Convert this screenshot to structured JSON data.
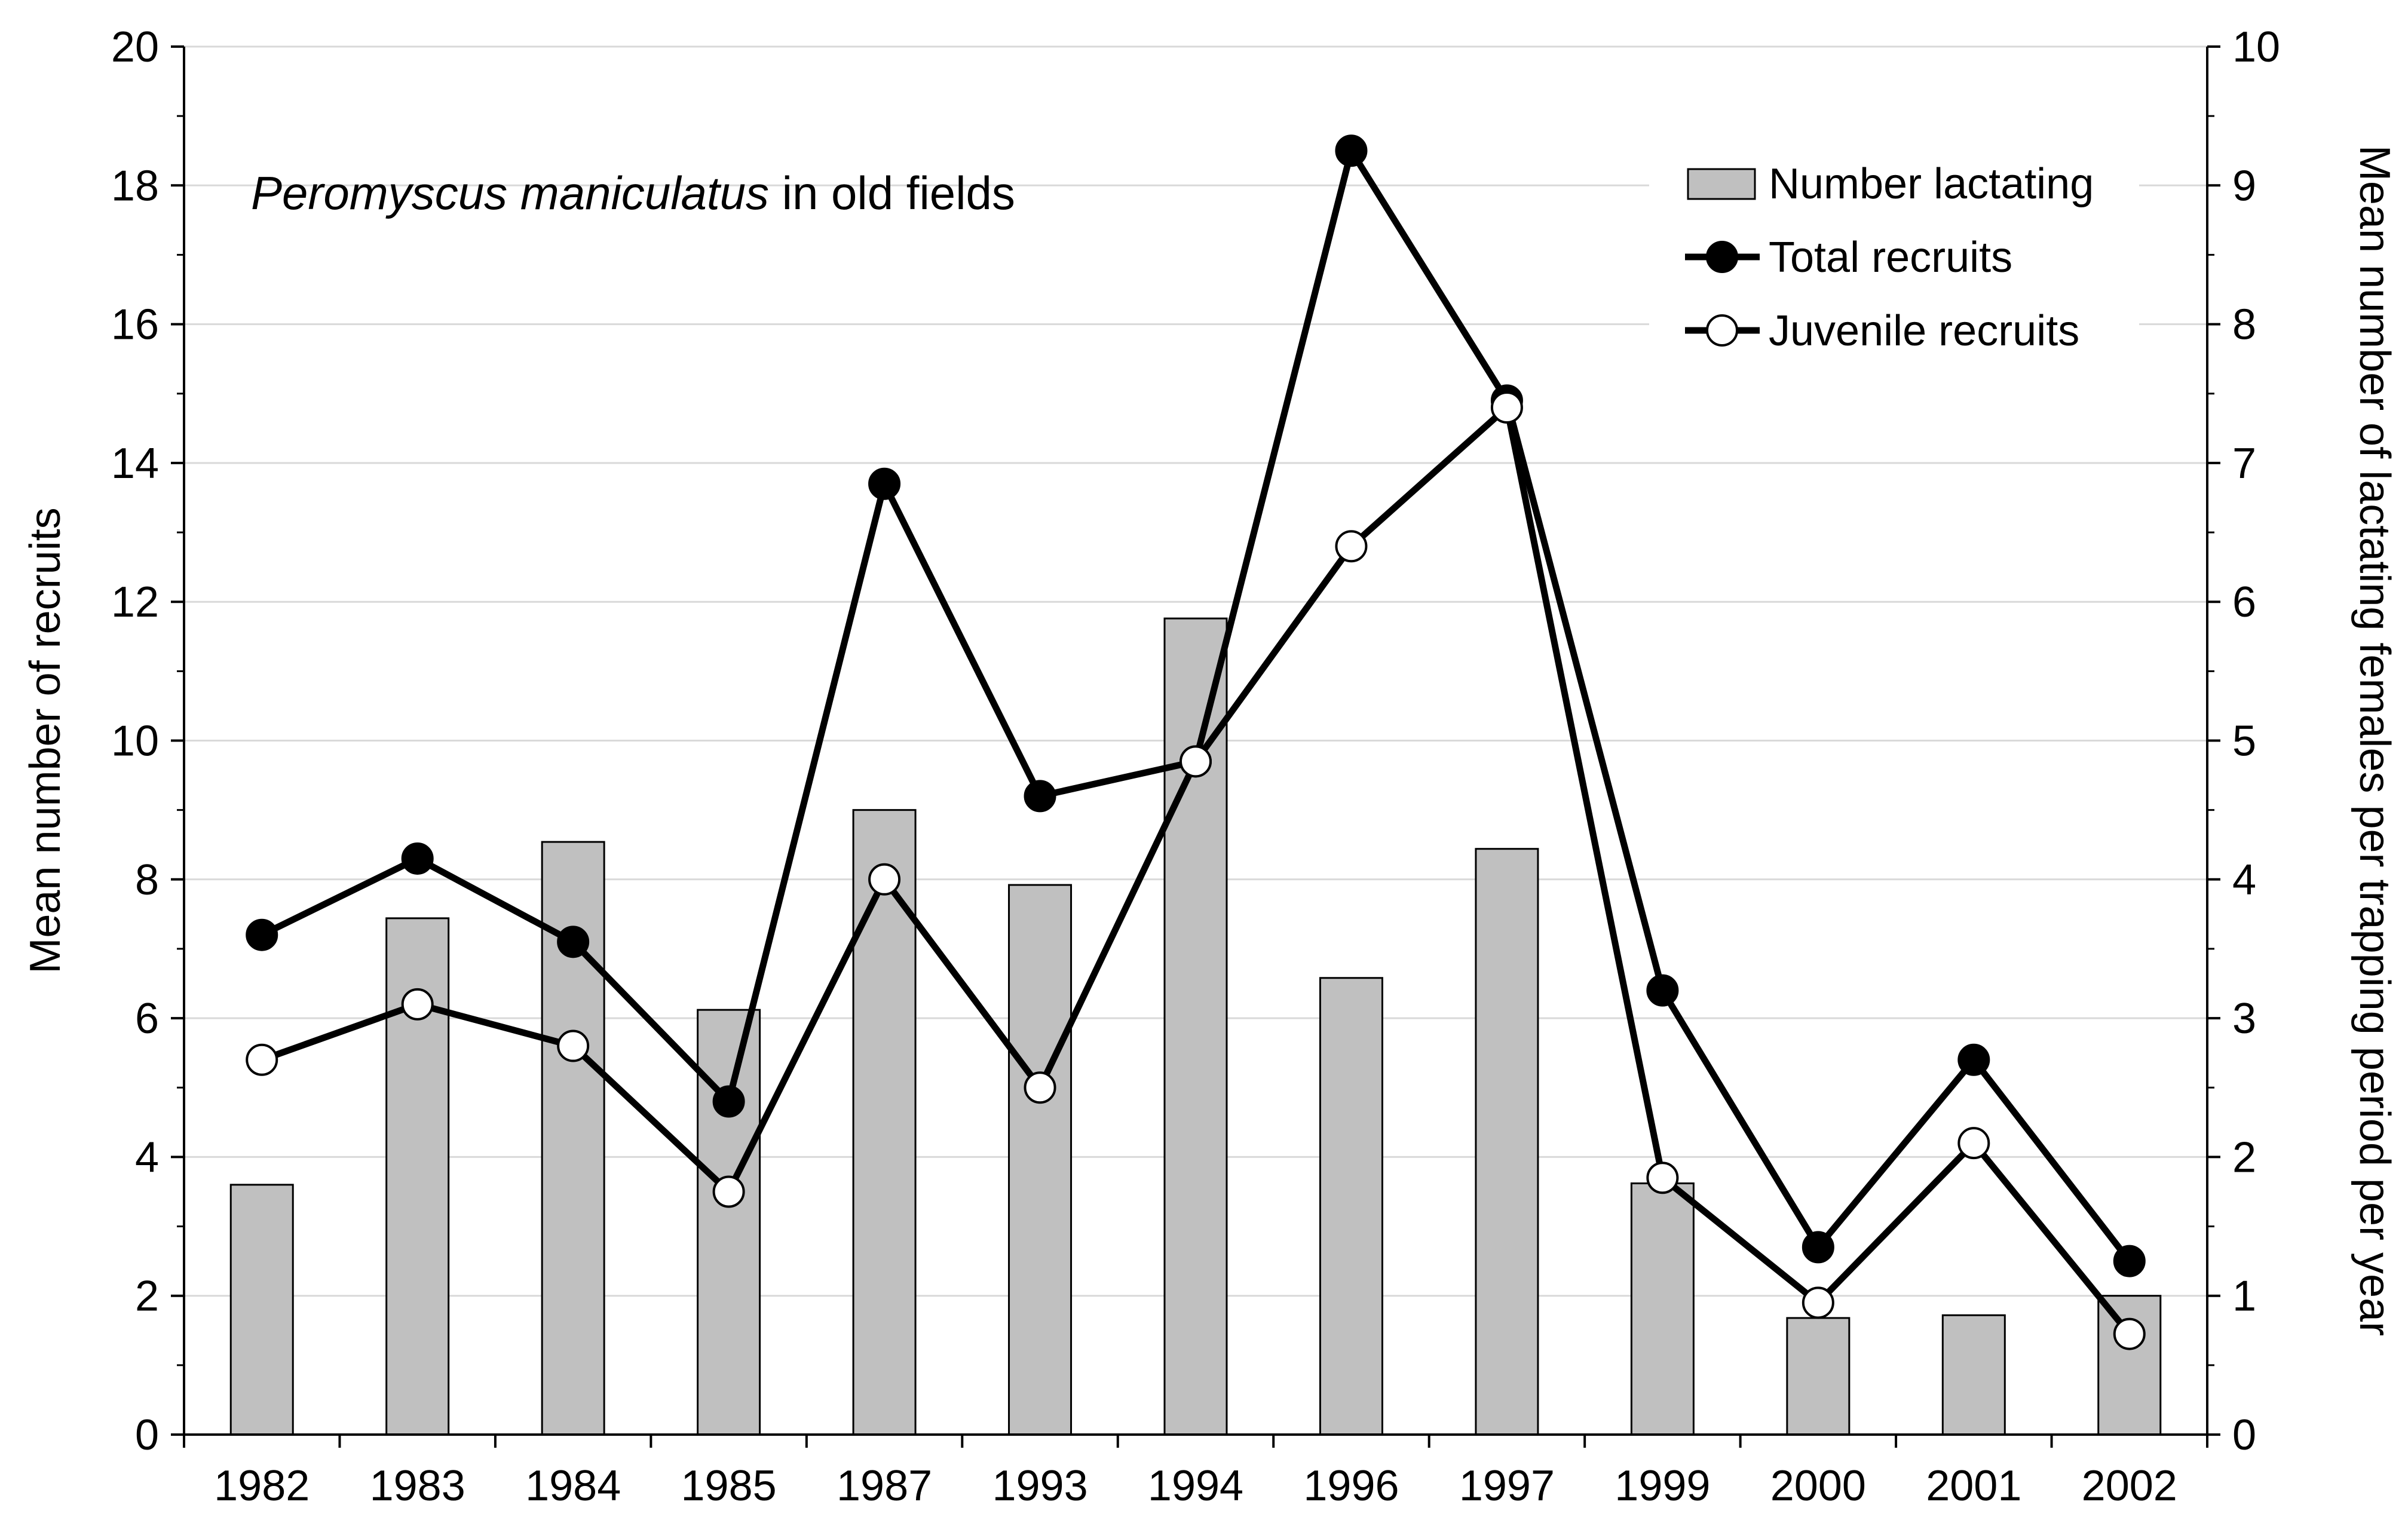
{
  "chart_data": {
    "type": "bar+line",
    "title_italic": "Peromyscus maniculatus",
    "title_rest": " in old fields",
    "categories": [
      "1982",
      "1983",
      "1984",
      "1985",
      "1987",
      "1993",
      "1994",
      "1996",
      "1997",
      "1999",
      "2000",
      "2001",
      "2002"
    ],
    "left_axis": {
      "label": "Mean number of recruits",
      "range": [
        0,
        20
      ],
      "ticks": [
        "0",
        "2",
        "4",
        "6",
        "8",
        "10",
        "12",
        "14",
        "16",
        "18",
        "20"
      ]
    },
    "right_axis": {
      "label": "Mean number of lactating females per trapping period per year",
      "range": [
        0,
        10
      ],
      "ticks": [
        "0",
        "1",
        "2",
        "3",
        "4",
        "5",
        "6",
        "7",
        "8",
        "9",
        "10"
      ]
    },
    "series": [
      {
        "name": "Number lactating",
        "kind": "bar",
        "axis": "right",
        "color": "#c0c0c0",
        "values": [
          1.8,
          3.72,
          4.27,
          3.06,
          4.5,
          3.96,
          5.88,
          3.29,
          4.22,
          1.81,
          0.84,
          0.86,
          1.0
        ]
      },
      {
        "name": "Total recruits",
        "kind": "line",
        "axis": "left",
        "marker": "filled-circle",
        "color": "#000000",
        "values": [
          7.2,
          8.3,
          7.1,
          4.8,
          13.7,
          9.2,
          9.7,
          18.5,
          14.9,
          6.4,
          2.7,
          5.4,
          2.5
        ]
      },
      {
        "name": "Juvenile recruits",
        "kind": "line",
        "axis": "left",
        "marker": "open-circle",
        "color": "#000000",
        "values": [
          5.4,
          6.2,
          5.6,
          3.5,
          8.0,
          5.0,
          9.7,
          12.8,
          14.8,
          3.7,
          1.9,
          4.2,
          1.45
        ]
      }
    ],
    "legend_position": "top-right",
    "grid": "horizontal"
  }
}
